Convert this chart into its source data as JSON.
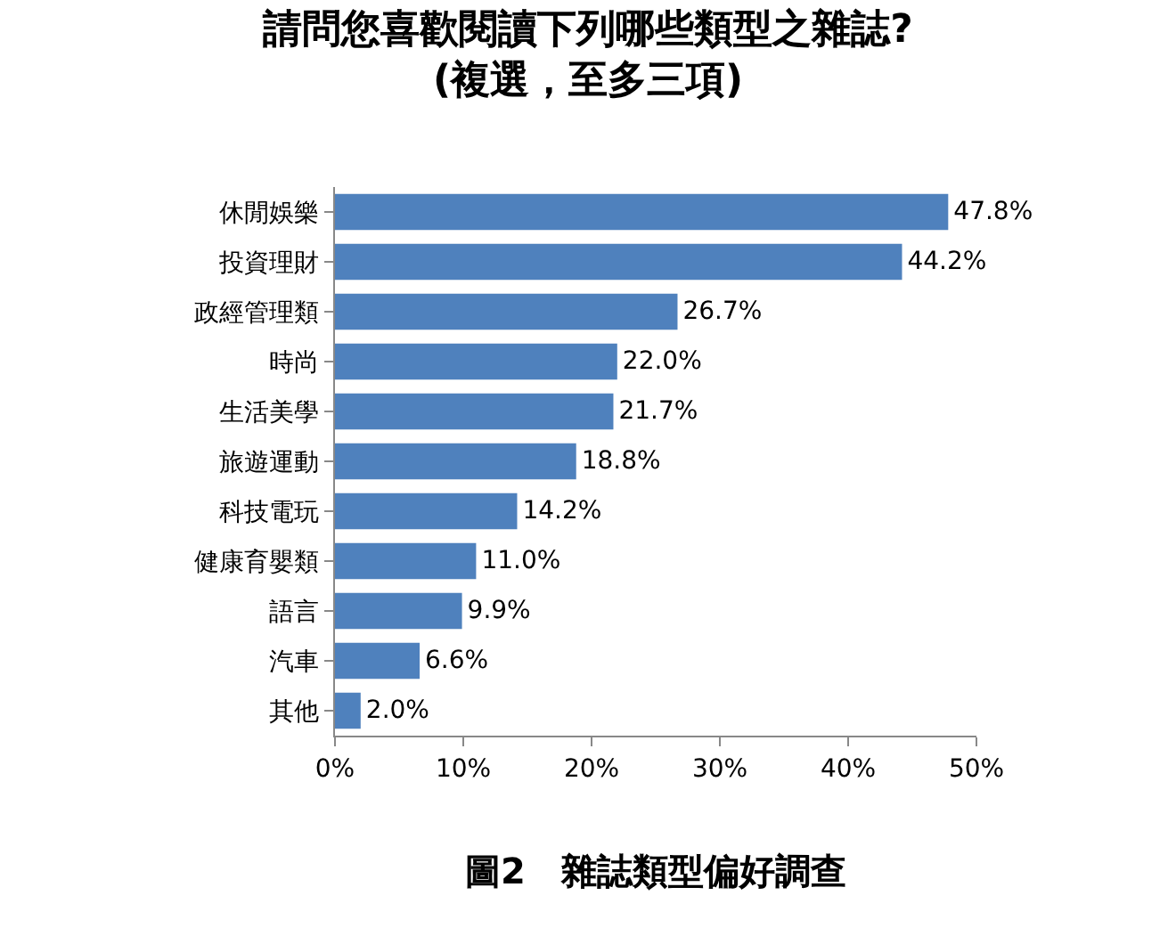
{
  "chart_data": {
    "type": "bar",
    "orientation": "horizontal",
    "title": "請問您喜歡閱讀下列哪些類型之雜誌?",
    "subtitle": "(複選，至多三項)",
    "categories": [
      "休閒娛樂",
      "投資理財",
      "政經管理類",
      "時尚",
      "生活美學",
      "旅遊運動",
      "科技電玩",
      "健康育嬰類",
      "語言",
      "汽車",
      "其他"
    ],
    "values": [
      47.8,
      44.2,
      26.7,
      22.0,
      21.7,
      18.8,
      14.2,
      11.0,
      9.9,
      6.6,
      2.0
    ],
    "value_labels": [
      "47.8%",
      "44.2%",
      "26.7%",
      "22.0%",
      "21.7%",
      "18.8%",
      "14.2%",
      "11.0%",
      "9.9%",
      "6.6%",
      "2.0%"
    ],
    "color": "#4f81bd",
    "xlim": [
      0,
      50
    ],
    "xticks": [
      {
        "value": 0,
        "label": "0%"
      },
      {
        "value": 10,
        "label": "10%"
      },
      {
        "value": 20,
        "label": "20%"
      },
      {
        "value": 30,
        "label": "30%"
      },
      {
        "value": 40,
        "label": "40%"
      },
      {
        "value": 50,
        "label": "50%"
      }
    ],
    "annotations": [
      "圖2　雜誌類型偏好調查"
    ]
  }
}
